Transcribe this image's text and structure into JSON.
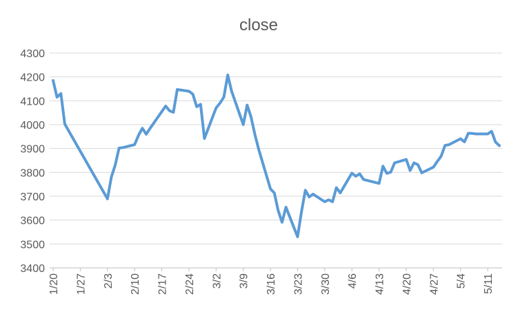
{
  "chart_data": {
    "type": "line",
    "title": "close",
    "xlabel": "",
    "ylabel": "",
    "ylim": [
      3400,
      4300
    ],
    "y_ticks": [
      3400,
      3500,
      3600,
      3700,
      3800,
      3900,
      4000,
      4100,
      4200,
      4300
    ],
    "x_ticks": [
      "1/20",
      "1/27",
      "2/3",
      "2/10",
      "2/17",
      "2/24",
      "3/2",
      "3/9",
      "3/16",
      "3/23",
      "3/30",
      "4/6",
      "4/13",
      "4/20",
      "4/27",
      "5/4",
      "5/11"
    ],
    "grid": true,
    "legend": "none",
    "line_color": "#5b9bd5",
    "series": [
      {
        "x": [
          "1/20",
          "1/21",
          "1/22",
          "1/23",
          "2/3",
          "2/4",
          "2/5",
          "2/6",
          "2/7",
          "2/10",
          "2/11",
          "2/12",
          "2/13",
          "2/14",
          "2/18",
          "2/19",
          "2/20",
          "2/21",
          "2/24",
          "2/25",
          "2/26",
          "2/27",
          "2/28",
          "3/2",
          "3/3",
          "3/4",
          "3/5",
          "3/6",
          "3/9",
          "3/10",
          "3/11",
          "3/12",
          "3/13",
          "3/16",
          "3/17",
          "3/18",
          "3/19",
          "3/20",
          "3/23",
          "3/24",
          "3/25",
          "3/26",
          "3/27",
          "3/30",
          "3/31",
          "4/1",
          "4/2",
          "4/3",
          "4/6",
          "4/7",
          "4/8",
          "4/9",
          "4/13",
          "4/14",
          "4/15",
          "4/16",
          "4/17",
          "4/20",
          "4/21",
          "4/22",
          "4/23",
          "4/24",
          "4/27",
          "4/28",
          "4/29",
          "4/30",
          "5/1",
          "5/4",
          "5/5",
          "5/6",
          "5/7",
          "5/8",
          "5/11",
          "5/12",
          "5/13",
          "5/14"
        ],
        "values": [
          4185,
          4115,
          4130,
          4003,
          3689,
          3780,
          3830,
          3902,
          3904,
          3916,
          3955,
          3985,
          3960,
          3985,
          4078,
          4058,
          4052,
          4147,
          4140,
          4128,
          4075,
          4085,
          3942,
          4070,
          4090,
          4115,
          4208,
          4140,
          4000,
          4082,
          4033,
          3958,
          3895,
          3731,
          3714,
          3640,
          3591,
          3654,
          3530,
          3635,
          3725,
          3697,
          3709,
          3677,
          3685,
          3677,
          3736,
          3714,
          3797,
          3784,
          3794,
          3770,
          3754,
          3826,
          3796,
          3801,
          3840,
          3854,
          3808,
          3840,
          3832,
          3798,
          3822,
          3846,
          3868,
          3913,
          3916,
          3941,
          3928,
          3964,
          3963,
          3961,
          3961,
          3972,
          3927,
          3912
        ]
      }
    ]
  }
}
